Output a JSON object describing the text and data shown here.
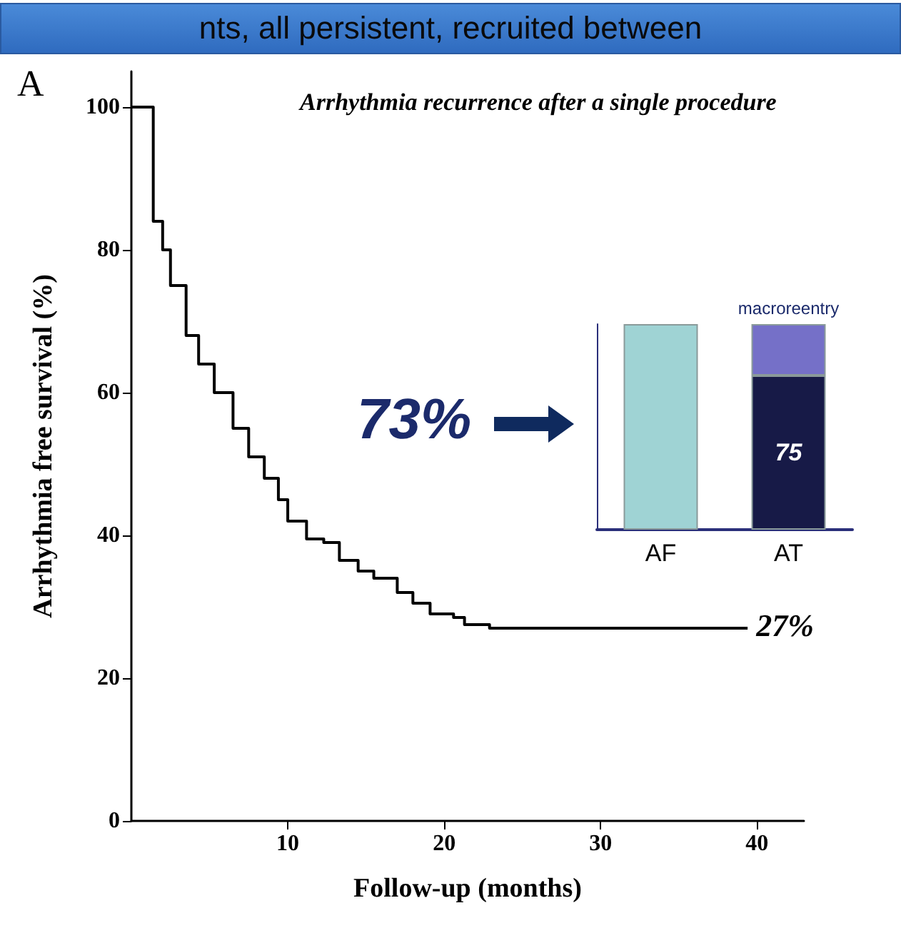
{
  "chart_data": [
    {
      "type": "step",
      "title": "Arrhythmia recurrence after a single procedure",
      "xlabel": "Follow-up (months)",
      "ylabel": "Arrhythmia free survival (%)",
      "x": [
        0,
        1.4,
        2,
        2.5,
        3.5,
        4.3,
        5.3,
        6.5,
        7.5,
        8.5,
        9.4,
        10,
        11.2,
        12.3,
        13.3,
        14.5,
        15.5,
        17,
        18,
        19.1,
        20.6,
        21.3,
        22.9,
        39.4
      ],
      "values": [
        100,
        84,
        80,
        75,
        68,
        64,
        60,
        55,
        51,
        48,
        45,
        42,
        39.5,
        39,
        36.5,
        35,
        34,
        32,
        30.5,
        29,
        28.5,
        27.5,
        27,
        27
      ],
      "color": "#000000",
      "xlim": [
        0,
        43
      ],
      "xticks": [
        10,
        20,
        30,
        40
      ],
      "ylim": [
        0,
        105
      ],
      "yticks": [
        0,
        20,
        40,
        60,
        80,
        100
      ],
      "grid": false,
      "marker": "none",
      "annotations": [
        "A",
        "73%",
        {
          "text": "27%",
          "x": 39.4,
          "y": 27
        },
        "nts, all persistent, recruited between"
      ]
    },
    {
      "type": "bar",
      "stacked": true,
      "categories": [
        "AF",
        "AT"
      ],
      "series": [
        {
          "color": "#9fd3d4",
          "values": [
            100,
            null
          ]
        },
        {
          "color": "#171a47",
          "values": [
            null,
            75
          ],
          "value_labels": [
            null,
            "75"
          ]
        },
        {
          "name": "macroreentry",
          "color": "#7570c8",
          "values": [
            null,
            25
          ]
        }
      ],
      "ylim": [
        0,
        100
      ],
      "tick_labels": "x",
      "grid": false
    }
  ]
}
